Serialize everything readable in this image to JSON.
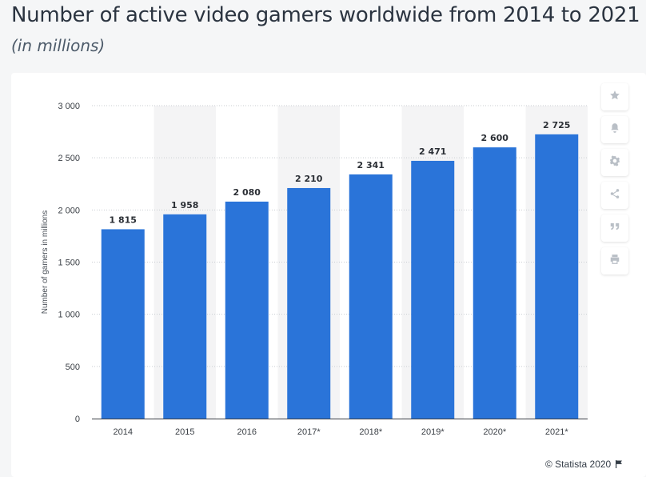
{
  "title": "Number of active video gamers worldwide from 2014 to 2021",
  "subtitle": "(in millions)",
  "credit": {
    "text": "© Statista 2020"
  },
  "toolbar": {
    "buttons": [
      {
        "name": "favorite",
        "icon": "star-icon"
      },
      {
        "name": "notification",
        "icon": "bell-icon"
      },
      {
        "name": "settings",
        "icon": "gear-icon"
      },
      {
        "name": "share",
        "icon": "share-icon"
      },
      {
        "name": "cite",
        "icon": "quote-icon"
      },
      {
        "name": "print",
        "icon": "print-icon"
      }
    ]
  },
  "chart_data": {
    "type": "bar",
    "categories": [
      "2014",
      "2015",
      "2016",
      "2017*",
      "2018*",
      "2019*",
      "2020*",
      "2021*"
    ],
    "values": [
      1815,
      1958,
      2080,
      2210,
      2341,
      2471,
      2600,
      2725
    ],
    "value_labels": [
      "1 815",
      "1 958",
      "2 080",
      "2 210",
      "2 341",
      "2 471",
      "2 600",
      "2 725"
    ],
    "ylabel": "Number of gamers in millions",
    "xlabel": "",
    "ylim": [
      0,
      3000
    ],
    "yticks": [
      0,
      500,
      1000,
      1500,
      2000,
      2500,
      3000
    ],
    "ytick_labels": [
      "0",
      "500",
      "1 000",
      "1 500",
      "2 000",
      "2 500",
      "3 000"
    ],
    "grid": true,
    "bar_color": "#2a74d9",
    "band_color": "#f4f4f5"
  }
}
